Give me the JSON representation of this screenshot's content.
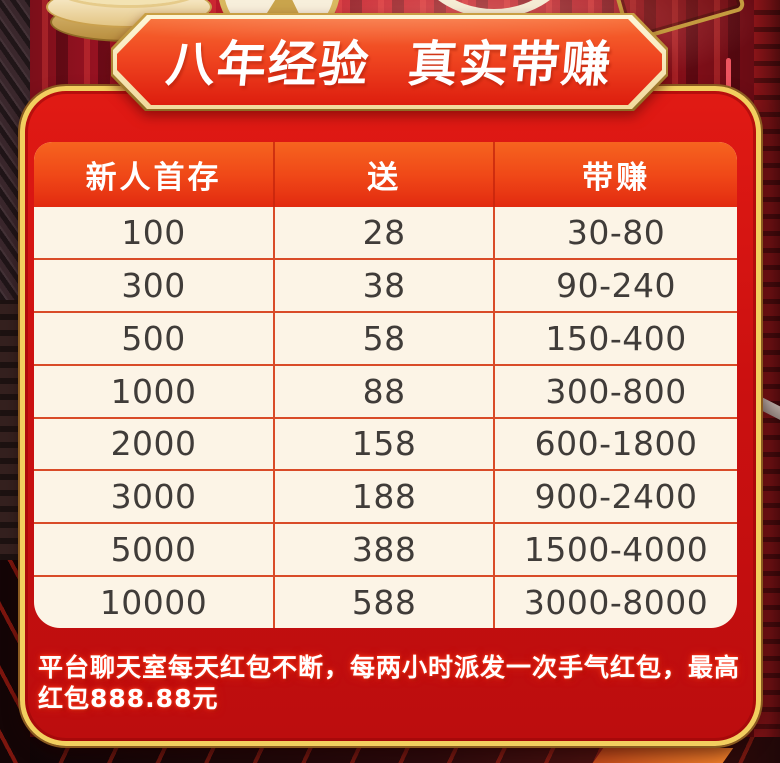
{
  "banner": {
    "title": "八年经验  真实带赚"
  },
  "table": {
    "headers": [
      "新人首存",
      "送",
      "带赚"
    ],
    "rows": [
      [
        "100",
        "28",
        "30-80"
      ],
      [
        "300",
        "38",
        "90-240"
      ],
      [
        "500",
        "58",
        "150-400"
      ],
      [
        "1000",
        "88",
        "300-800"
      ],
      [
        "2000",
        "158",
        "600-1800"
      ],
      [
        "3000",
        "188",
        "900-2400"
      ],
      [
        "5000",
        "388",
        "1500-4000"
      ],
      [
        "10000",
        "588",
        "3000-8000"
      ]
    ]
  },
  "tagline": {
    "line1": "平台聊天室每天红包不断，每两小时派发一次手气红包，最高",
    "line2": "红包888.88元"
  },
  "icons": {
    "coin_stack": "coin-stack-icon",
    "gold_coin": "gold-coin-icon",
    "rings": "ring-icon",
    "gold_frame": "gold-frame-icon"
  },
  "colors": {
    "panel_red": "#cb1010",
    "gold_border": "#f2cf5f",
    "banner_orange": "#ef4520",
    "header_orange": "#ef4617",
    "cream": "#fcf4e6",
    "grid_line": "#d94b28",
    "cell_text": "#403c39",
    "glow_red": "#f2301a"
  }
}
